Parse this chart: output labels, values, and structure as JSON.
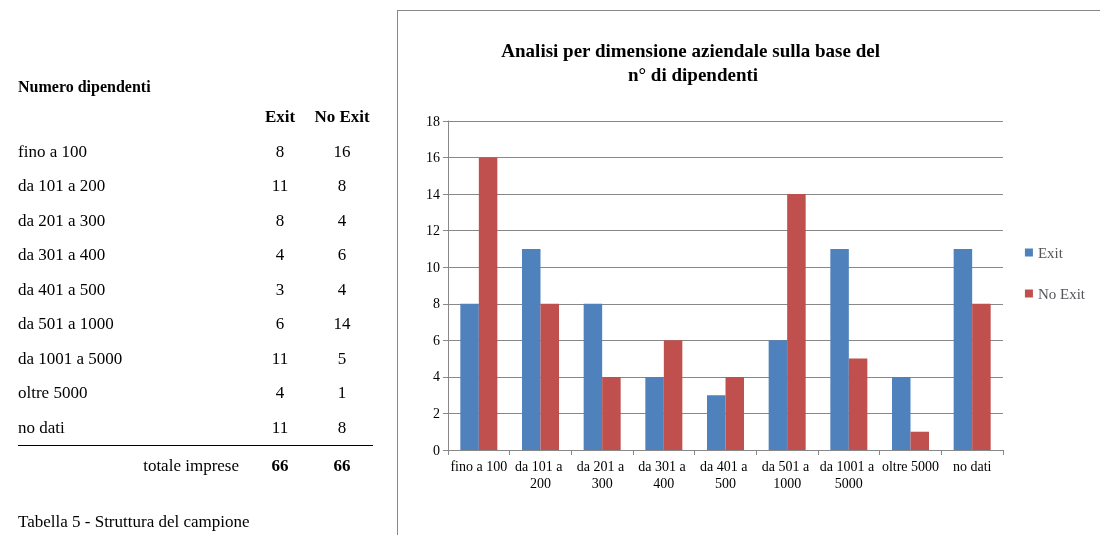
{
  "chart_data": [
    {
      "type": "other",
      "title": "Numero dipendenti",
      "categories": [
        "fino a 100",
        "da 101 a 200",
        "da 201 a 300",
        "da 301 a 400",
        "da 401 a 500",
        "da 501 a 1000",
        "da 1001 a 5000",
        "oltre 5000",
        "no dati"
      ],
      "series": [
        {
          "name": "Exit",
          "values": [
            8,
            11,
            8,
            4,
            3,
            6,
            11,
            4,
            11
          ],
          "value_labels": [
            "8",
            "11",
            "8",
            "4",
            "3",
            "6",
            "11",
            "4",
            "11"
          ]
        },
        {
          "name": "No Exit",
          "values": [
            16,
            8,
            4,
            6,
            4,
            14,
            5,
            1,
            8
          ],
          "value_labels": [
            "16",
            "8",
            "4",
            "6",
            "4",
            "14",
            "5",
            "1",
            "8"
          ]
        }
      ],
      "totals": [
        "66",
        "66"
      ],
      "annotations": [
        "totale imprese",
        "Tabella 5 - Struttura del campione"
      ]
    },
    {
      "type": "bar",
      "title": "Analisi per dimensione aziendale sulla base del n° di dipendenti",
      "categories": [
        "fino a 100",
        "da 101 a 200",
        "da 201 a 300",
        "da 301 a 400",
        "da 401 a 500",
        "da 501 a 1000",
        "da 1001 a 5000",
        "oltre 5000",
        "no dati"
      ],
      "series": [
        {
          "name": "Exit",
          "color": "#4f81bd",
          "values": [
            8,
            11,
            8,
            4,
            3,
            6,
            11,
            4,
            11
          ]
        },
        {
          "name": "No Exit",
          "color": "#c0504d",
          "values": [
            16,
            8,
            4,
            6,
            4,
            14,
            5,
            1,
            8
          ]
        }
      ],
      "ylim": [
        0,
        18
      ],
      "yticks": [
        0,
        2,
        4,
        6,
        8,
        10,
        12,
        14,
        16,
        18
      ],
      "grid": "y",
      "legend": "right"
    }
  ]
}
